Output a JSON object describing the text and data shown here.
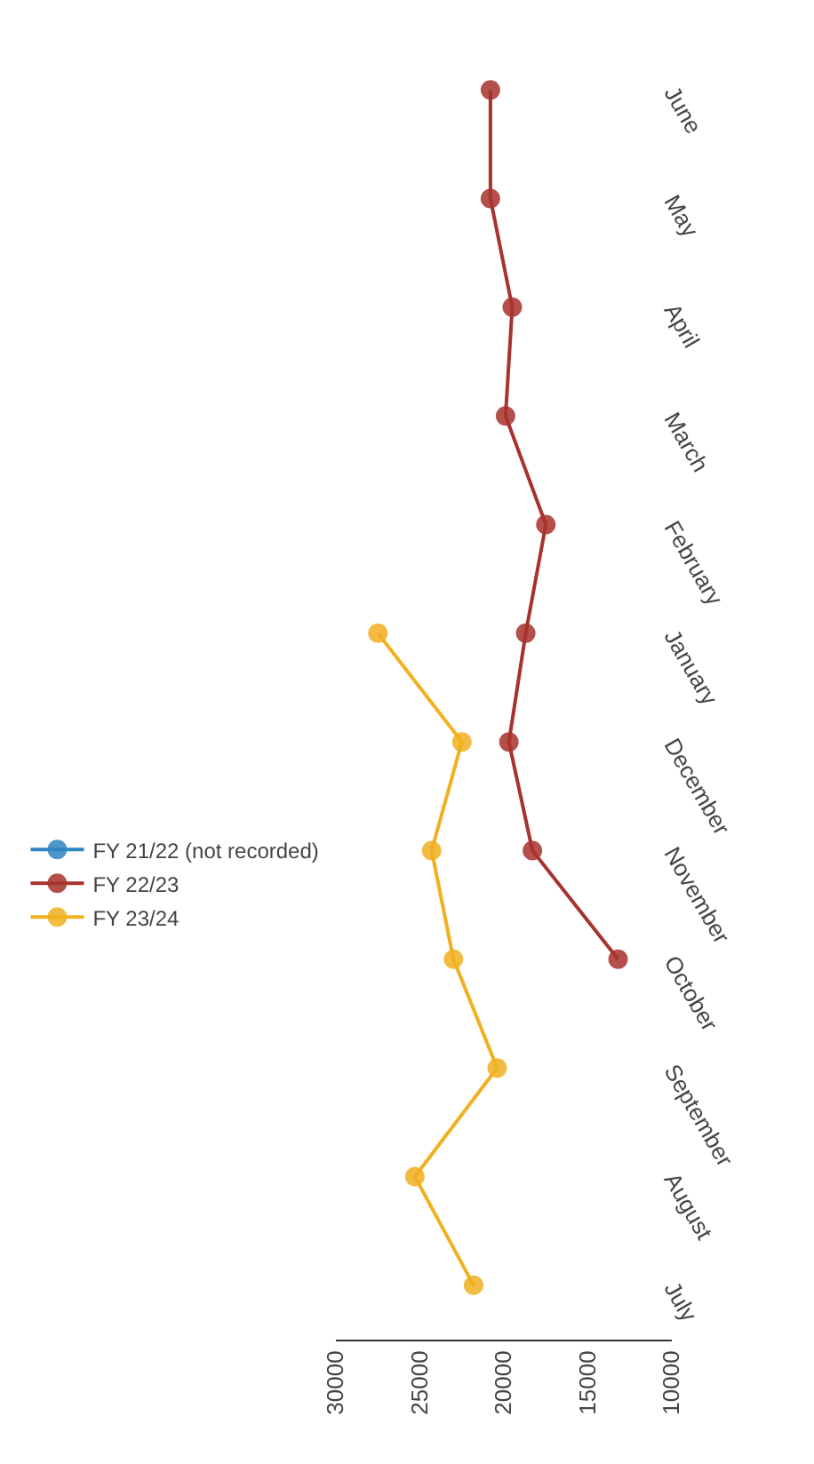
{
  "chart_data": {
    "type": "line",
    "orientation": "horizontal",
    "categories": [
      "June",
      "May",
      "April",
      "March",
      "February",
      "January",
      "December",
      "November",
      "October",
      "September",
      "August",
      "July"
    ],
    "series": [
      {
        "name": "FY 21/22 (not recorded)",
        "color": "#2e86c1",
        "values": [
          null,
          null,
          null,
          null,
          null,
          null,
          null,
          null,
          null,
          null,
          null,
          null
        ]
      },
      {
        "name": "FY 22/23",
        "color": "#a8322d",
        "values": [
          20800,
          20800,
          19500,
          19900,
          17500,
          18700,
          19700,
          18300,
          13200,
          null,
          null,
          null
        ]
      },
      {
        "name": "FY 23/24",
        "color": "#f0b020",
        "values": [
          null,
          null,
          null,
          null,
          null,
          27500,
          22500,
          24300,
          23000,
          20400,
          25300,
          21800
        ]
      }
    ],
    "xlim": [
      30000,
      10000
    ],
    "xticks": [
      30000,
      25000,
      20000,
      15000,
      10000
    ],
    "legend": "left",
    "marker": "circle",
    "line_style": "solid"
  }
}
